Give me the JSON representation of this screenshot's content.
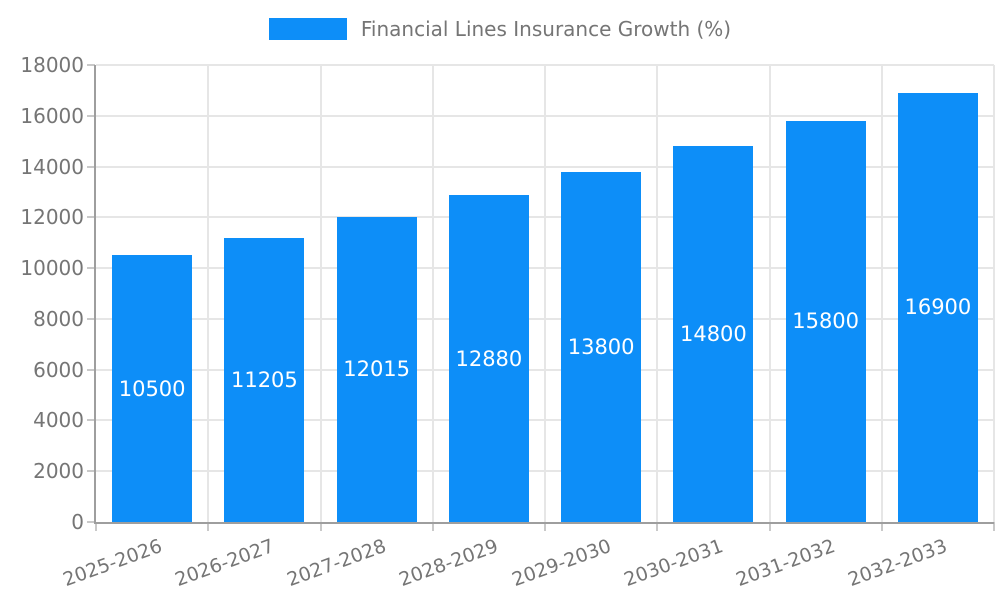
{
  "chart_data": {
    "type": "bar",
    "title": "Financial Lines Insurance Growth (%)",
    "categories": [
      "2025-2026",
      "2026-2027",
      "2027-2028",
      "2028-2029",
      "2029-2030",
      "2030-2031",
      "2031-2032",
      "2032-2033"
    ],
    "series": [
      {
        "name": "Financial Lines Insurance Growth (%)",
        "values": [
          10500,
          11205,
          12015,
          12880,
          13800,
          14800,
          15800,
          16900
        ]
      }
    ],
    "value_labels_shown": true,
    "value_labels": [
      "10500",
      "11205",
      "12015",
      "12880",
      "13800",
      "14800",
      "15800",
      "16900"
    ],
    "xlabel": "",
    "ylabel": "",
    "ylim": [
      0,
      18000
    ],
    "ytick_step": 2000,
    "yticks": [
      "0",
      "2000",
      "4000",
      "6000",
      "8000",
      "10000",
      "12000",
      "14000",
      "16000",
      "18000"
    ],
    "grid": true,
    "legend_position": "top-center",
    "x_label_rotation_deg": -20,
    "colors": {
      "bar": "#0d8ef8",
      "grid": "#e6e6e6",
      "axis": "#9e9e9e",
      "tick_label": "#757575",
      "value_label": "#ffffff",
      "background": "#ffffff"
    }
  }
}
